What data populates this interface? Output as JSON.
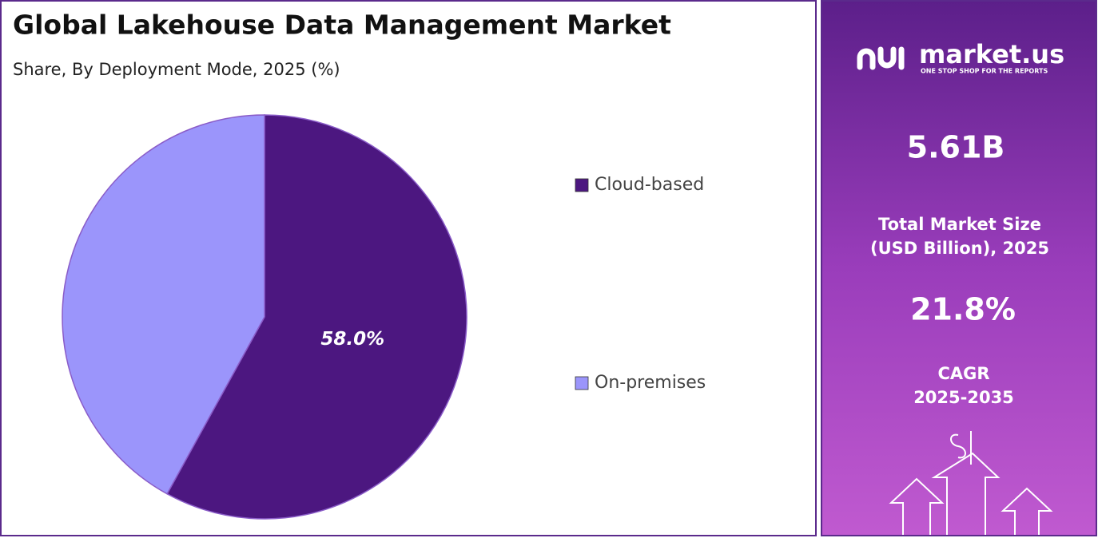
{
  "chart_data": {
    "type": "pie",
    "title": "Global Lakehouse Data Management Market",
    "subtitle": "Share, By Deployment Mode, 2025 (%)",
    "categories": [
      "Cloud-based",
      "On-premises"
    ],
    "values": [
      58.0,
      42.0
    ],
    "value_labels": [
      "58.0%",
      null
    ],
    "colors": [
      "#4c1780",
      "#9b95fb"
    ]
  },
  "panel": {
    "logo": "market.us",
    "tagline": "ONE STOP SHOP FOR THE REPORTS",
    "market_size": "5.61B",
    "market_size_label": [
      "Total Market Size",
      "(USD Billion), 2025"
    ],
    "cagr": "21.8%",
    "cagr_label": [
      "CAGR",
      "2025-2035"
    ]
  }
}
